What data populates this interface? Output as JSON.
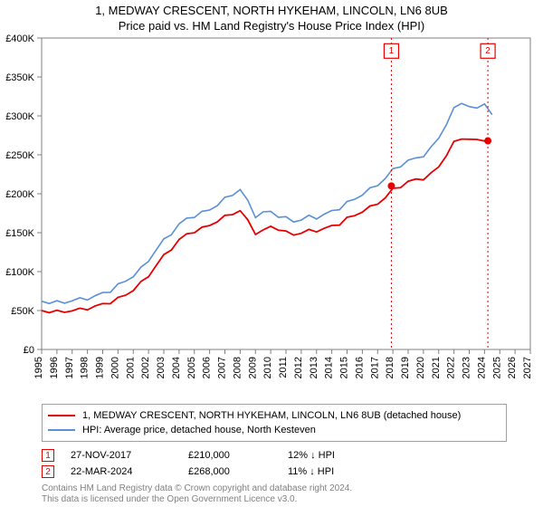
{
  "title": "1, MEDWAY CRESCENT, NORTH HYKEHAM, LINCOLN, LN6 8UB",
  "subtitle": "Price paid vs. HM Land Registry's House Price Index (HPI)",
  "chart": {
    "type": "line",
    "background_color": "#ffffff",
    "border_color": "#808080",
    "grid_color": "#808080",
    "y": {
      "min": 0,
      "max": 400000,
      "tick_step": 50000,
      "labels": [
        "£0",
        "£50K",
        "£100K",
        "£150K",
        "£200K",
        "£250K",
        "£300K",
        "£350K",
        "£400K"
      ],
      "fontsize": 11
    },
    "x": {
      "min": 1995,
      "max": 2027,
      "tick_step": 1,
      "labels": [
        "1995",
        "1996",
        "1997",
        "1998",
        "1999",
        "2000",
        "2001",
        "2002",
        "2003",
        "2004",
        "2005",
        "2006",
        "2007",
        "2008",
        "2009",
        "2010",
        "2011",
        "2012",
        "2013",
        "2014",
        "2015",
        "2016",
        "2017",
        "2018",
        "2019",
        "2020",
        "2021",
        "2022",
        "2023",
        "2024",
        "2025",
        "2026",
        "2027"
      ],
      "fontsize": 11,
      "rotate": -90
    },
    "series": [
      {
        "name": "property",
        "color": "#e60000",
        "width": 1.8,
        "x": [
          1995,
          1995.5,
          1996,
          1996.5,
          1997,
          1997.5,
          1998,
          1998.5,
          1999,
          1999.5,
          2000,
          2000.5,
          2001,
          2001.5,
          2002,
          2002.5,
          2003,
          2003.5,
          2004,
          2004.5,
          2005,
          2005.5,
          2006,
          2006.5,
          2007,
          2007.5,
          2008,
          2008.5,
          2009,
          2009.5,
          2010,
          2010.5,
          2011,
          2011.5,
          2012,
          2012.5,
          2013,
          2013.5,
          2014,
          2014.5,
          2015,
          2015.5,
          2016,
          2016.5,
          2017,
          2017.5,
          2018,
          2018.5,
          2019,
          2019.5,
          2020,
          2020.5,
          2021,
          2021.5,
          2022,
          2022.5,
          2023,
          2023.5,
          2024,
          2024.25
        ],
        "y": [
          50000,
          49000,
          48000,
          49000,
          50000,
          51000,
          53000,
          55000,
          58000,
          61000,
          65000,
          70000,
          77000,
          85000,
          95000,
          108000,
          120000,
          130000,
          140000,
          148000,
          152000,
          155000,
          160000,
          165000,
          170000,
          175000,
          178000,
          165000,
          150000,
          152000,
          158000,
          155000,
          150000,
          148000,
          150000,
          152000,
          153000,
          155000,
          158000,
          162000,
          168000,
          172000,
          178000,
          182000,
          188000,
          195000,
          205000,
          210000,
          215000,
          218000,
          220000,
          225000,
          235000,
          250000,
          265000,
          272000,
          270000,
          268000,
          270000,
          268000
        ]
      },
      {
        "name": "hpi",
        "color": "#5b8fd6",
        "width": 1.6,
        "x": [
          1995,
          1995.5,
          1996,
          1996.5,
          1997,
          1997.5,
          1998,
          1998.5,
          1999,
          1999.5,
          2000,
          2000.5,
          2001,
          2001.5,
          2002,
          2002.5,
          2003,
          2003.5,
          2004,
          2004.5,
          2005,
          2005.5,
          2006,
          2006.5,
          2007,
          2007.5,
          2008,
          2008.5,
          2009,
          2009.5,
          2010,
          2010.5,
          2011,
          2011.5,
          2012,
          2012.5,
          2013,
          2013.5,
          2014,
          2014.5,
          2015,
          2015.5,
          2016,
          2016.5,
          2017,
          2017.5,
          2018,
          2018.5,
          2019,
          2019.5,
          2020,
          2020.5,
          2021,
          2021.5,
          2022,
          2022.5,
          2023,
          2023.5,
          2024,
          2024.5
        ],
        "y": [
          62000,
          61000,
          60000,
          61000,
          63000,
          64000,
          66000,
          68000,
          72000,
          76000,
          82000,
          88000,
          95000,
          103000,
          115000,
          128000,
          140000,
          150000,
          160000,
          168000,
          172000,
          175000,
          180000,
          186000,
          193000,
          200000,
          205000,
          190000,
          172000,
          175000,
          177000,
          172000,
          168000,
          165000,
          167000,
          170000,
          170000,
          173000,
          177000,
          182000,
          188000,
          193000,
          200000,
          205000,
          212000,
          220000,
          230000,
          237000,
          242000,
          245000,
          250000,
          258000,
          272000,
          290000,
          308000,
          318000,
          312000,
          308000,
          318000,
          300000
        ]
      }
    ],
    "markers": [
      {
        "id": "1",
        "year": 2017.9,
        "value": 210000,
        "color": "#e60000",
        "label_y": 395000
      },
      {
        "id": "2",
        "year": 2024.22,
        "value": 268000,
        "color": "#e60000",
        "label_y": 395000
      }
    ]
  },
  "legend": {
    "items": [
      {
        "color": "#e60000",
        "label": "1, MEDWAY CRESCENT, NORTH HYKEHAM, LINCOLN, LN6 8UB (detached house)"
      },
      {
        "color": "#5b8fd6",
        "label": "HPI: Average price, detached house, North Kesteven"
      }
    ]
  },
  "sales": [
    {
      "badge": "1",
      "color": "#e60000",
      "date": "27-NOV-2017",
      "price": "£210,000",
      "delta": "12% ↓ HPI"
    },
    {
      "badge": "2",
      "color": "#e60000",
      "date": "22-MAR-2024",
      "price": "£268,000",
      "delta": "11% ↓ HPI"
    }
  ],
  "footer": {
    "line1": "Contains HM Land Registry data © Crown copyright and database right 2024.",
    "line2": "This data is licensed under the Open Government Licence v3.0."
  }
}
